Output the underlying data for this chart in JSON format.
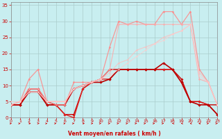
{
  "xlabel": "Vent moyen/en rafales ( km/h )",
  "xlim": [
    0,
    23
  ],
  "ylim": [
    0,
    36
  ],
  "yticks": [
    0,
    5,
    10,
    15,
    20,
    25,
    30,
    35
  ],
  "xticks": [
    0,
    1,
    2,
    3,
    4,
    5,
    6,
    7,
    8,
    9,
    10,
    11,
    12,
    13,
    14,
    15,
    16,
    17,
    18,
    19,
    20,
    21,
    22,
    23
  ],
  "bg_color": "#c8eef0",
  "grid_color": "#aacccc",
  "lines": [
    {
      "x": [
        0,
        1,
        2,
        3,
        4,
        5,
        6,
        7,
        8,
        9,
        10,
        11,
        12,
        13,
        14,
        15,
        16,
        17,
        18,
        19,
        20,
        21,
        22,
        23
      ],
      "y": [
        4,
        4,
        9,
        9,
        5,
        4,
        1,
        1,
        9,
        11,
        12,
        15,
        15,
        15,
        15,
        15,
        15,
        15,
        15,
        12,
        5,
        5,
        4,
        4
      ],
      "color": "#cc0000",
      "lw": 1.0,
      "ms": 2.0,
      "alpha": 1.0
    },
    {
      "x": [
        0,
        1,
        2,
        3,
        4,
        5,
        6,
        7,
        8,
        9,
        10,
        11,
        12,
        13,
        14,
        15,
        16,
        17,
        18,
        19,
        20,
        21,
        22,
        23
      ],
      "y": [
        4,
        4,
        9,
        9,
        4,
        4,
        1,
        0,
        9,
        11,
        12,
        12,
        15,
        15,
        15,
        15,
        15,
        15,
        15,
        11,
        5,
        5,
        4,
        1
      ],
      "color": "#dd2222",
      "lw": 1.0,
      "ms": 2.0,
      "alpha": 1.0
    },
    {
      "x": [
        0,
        1,
        2,
        3,
        4,
        5,
        6,
        7,
        8,
        9,
        10,
        11,
        12,
        13,
        14,
        15,
        16,
        17,
        18,
        19,
        20,
        21,
        22,
        23
      ],
      "y": [
        4,
        4,
        8,
        8,
        4,
        4,
        4,
        9,
        10,
        11,
        11,
        12,
        15,
        15,
        15,
        15,
        15,
        17,
        15,
        11,
        5,
        4,
        4,
        1
      ],
      "color": "#bb0000",
      "lw": 1.2,
      "ms": 2.2,
      "alpha": 1.0
    },
    {
      "x": [
        0,
        1,
        2,
        3,
        4,
        5,
        6,
        7,
        8,
        9,
        10,
        11,
        12,
        13,
        14,
        15,
        16,
        17,
        18,
        19,
        20,
        21,
        22,
        23
      ],
      "y": [
        4,
        5,
        12,
        15,
        5,
        4,
        4,
        11,
        11,
        11,
        12,
        22,
        30,
        29,
        30,
        29,
        29,
        33,
        33,
        29,
        33,
        15,
        11,
        4
      ],
      "color": "#ff8888",
      "lw": 0.9,
      "ms": 1.8,
      "alpha": 0.85
    },
    {
      "x": [
        0,
        1,
        2,
        3,
        4,
        5,
        6,
        7,
        8,
        9,
        10,
        11,
        12,
        13,
        14,
        15,
        16,
        17,
        18,
        19,
        20,
        21,
        22,
        23
      ],
      "y": [
        4,
        5,
        9,
        9,
        5,
        5,
        5,
        9,
        10,
        11,
        12,
        15,
        29,
        29,
        29,
        29,
        29,
        29,
        29,
        29,
        29,
        12,
        11,
        4
      ],
      "color": "#ffaaaa",
      "lw": 0.9,
      "ms": 1.8,
      "alpha": 0.8
    },
    {
      "x": [
        0,
        1,
        2,
        3,
        4,
        5,
        6,
        7,
        8,
        9,
        10,
        11,
        12,
        13,
        14,
        15,
        16,
        17,
        18,
        19,
        20,
        21,
        22,
        23
      ],
      "y": [
        4,
        5,
        8,
        8,
        5,
        5,
        5,
        9,
        10,
        11,
        12,
        14,
        17,
        18,
        21,
        22,
        23,
        25,
        26,
        27,
        29,
        14,
        11,
        4
      ],
      "color": "#ffbbbb",
      "lw": 0.8,
      "ms": 1.5,
      "alpha": 0.75
    },
    {
      "x": [
        0,
        1,
        2,
        3,
        4,
        5,
        6,
        7,
        8,
        9,
        10,
        11,
        12,
        13,
        14,
        15,
        16,
        17,
        18,
        19,
        20,
        21,
        22,
        23
      ],
      "y": [
        5,
        5,
        8,
        8,
        5,
        5,
        5,
        9,
        10,
        11,
        12,
        13,
        15,
        17,
        19,
        21,
        23,
        24,
        26,
        27,
        29,
        13,
        11,
        4
      ],
      "color": "#ffcccc",
      "lw": 0.8,
      "ms": 1.5,
      "alpha": 0.7
    }
  ],
  "wind_dirs": [
    90,
    60,
    45,
    30,
    10,
    10,
    90,
    60,
    45,
    30,
    10,
    10,
    5,
    5,
    5,
    5,
    5,
    5,
    355,
    350,
    345,
    340,
    10,
    5
  ]
}
